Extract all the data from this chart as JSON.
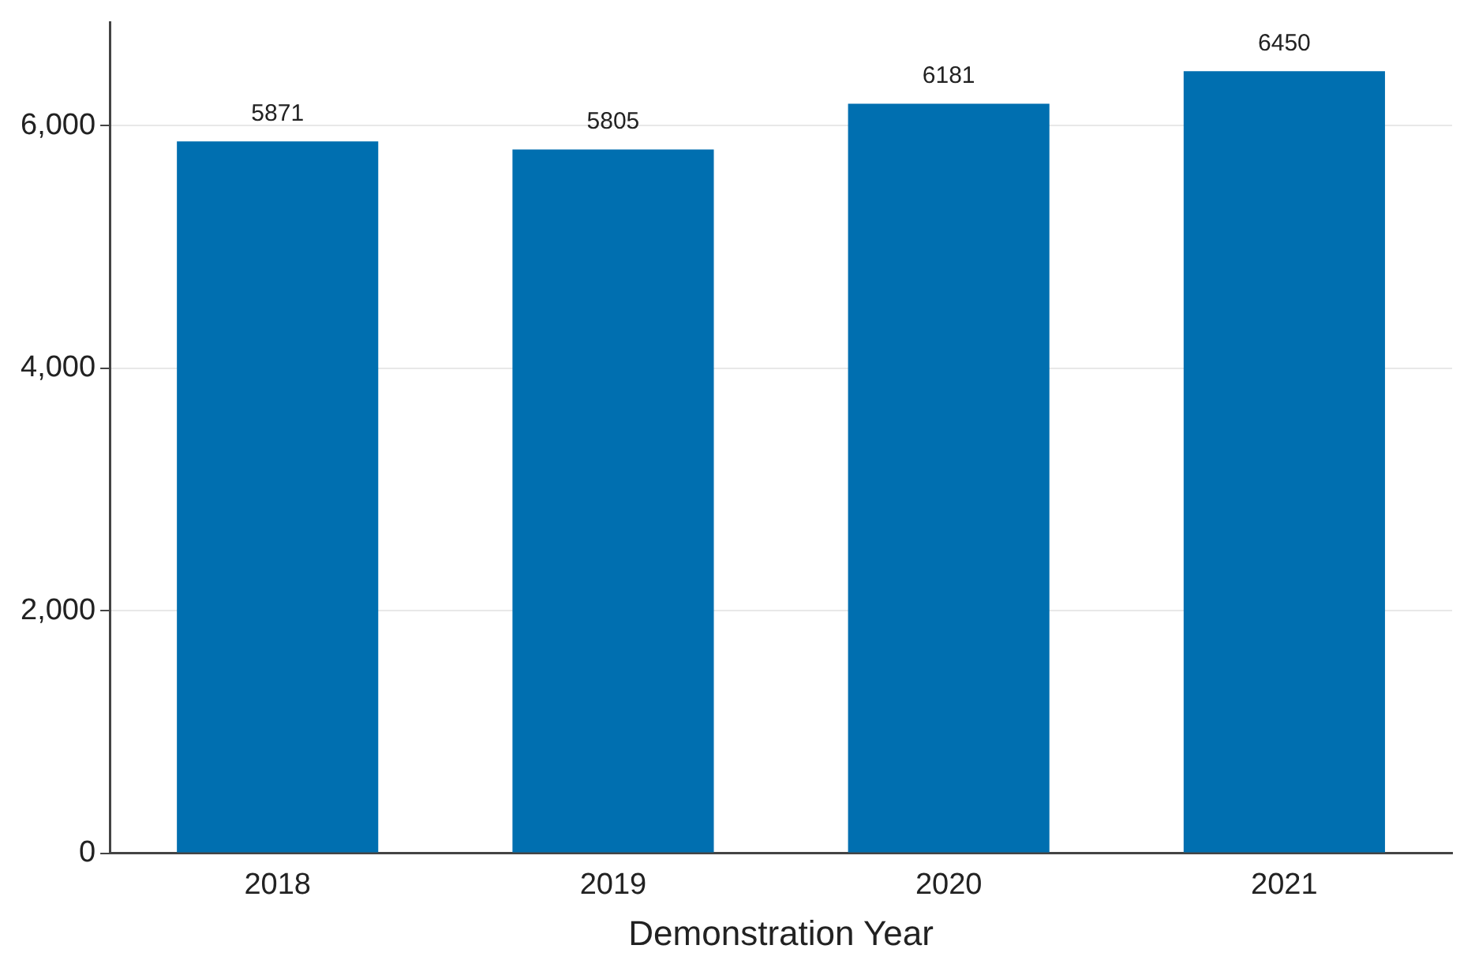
{
  "chart_data": {
    "type": "bar",
    "xlabel": "Demonstration Year",
    "categories": [
      "2018",
      "2019",
      "2020",
      "2021"
    ],
    "values": [
      5871,
      5805,
      6181,
      6450
    ],
    "color": "#006fb0",
    "ylim": [
      0,
      6850
    ],
    "yticks": [
      {
        "value": 0,
        "label": "0"
      },
      {
        "value": 2000,
        "label": "2,000"
      },
      {
        "value": 4000,
        "label": "4,000"
      },
      {
        "value": 6000,
        "label": "6,000"
      }
    ],
    "grid": "y",
    "data_labels": true,
    "legend": false
  }
}
